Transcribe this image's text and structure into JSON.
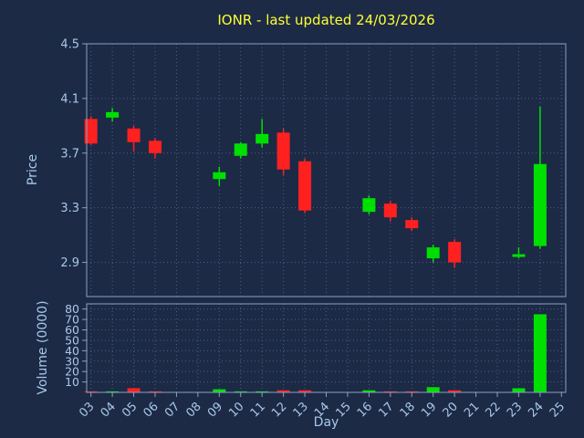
{
  "title": "IONR - last updated 24/03/2026",
  "colors": {
    "background": "#1c2a46",
    "up": "#00e000",
    "down": "#ff2020",
    "grid": "#55688e",
    "spine": "#8aa0c0",
    "tick_label": "#a8c8e8",
    "title": "#ffff33",
    "axis_label": "#a8c8e8"
  },
  "price_axis": {
    "label": "Price",
    "ticks": [
      2.9,
      3.3,
      3.7,
      4.1,
      4.5
    ],
    "range": [
      2.65,
      4.5
    ]
  },
  "volume_axis": {
    "label": "Volume (0000)",
    "ticks": [
      10,
      20,
      30,
      40,
      50,
      60,
      70,
      80
    ],
    "range": [
      0,
      85
    ]
  },
  "x_axis": {
    "label": "Day",
    "tick_labels": [
      "03",
      "04",
      "05",
      "06",
      "07",
      "08",
      "09",
      "10",
      "11",
      "12",
      "13",
      "14",
      "15",
      "16",
      "17",
      "18",
      "19",
      "20",
      "21",
      "22",
      "23",
      "24",
      "25"
    ],
    "first_day": 3,
    "range": [
      2.8,
      25.2
    ]
  },
  "chart_data": {
    "type": "candlestick+volume",
    "title": "IONR - last updated 24/03/2026",
    "xlabel": "Day",
    "ylabel": "Price",
    "volume_label": "Volume (0000)",
    "candles": [
      {
        "day": 3,
        "label": "03",
        "open": 3.95,
        "high": 3.97,
        "low": 3.76,
        "close": 3.77,
        "volume": 1
      },
      {
        "day": 4,
        "label": "04",
        "open": 3.96,
        "high": 4.03,
        "low": 3.93,
        "close": 4.0,
        "volume": 1
      },
      {
        "day": 5,
        "label": "05",
        "open": 3.88,
        "high": 3.9,
        "low": 3.71,
        "close": 3.78,
        "volume": 4
      },
      {
        "day": 6,
        "label": "06",
        "open": 3.79,
        "high": 3.81,
        "low": 3.66,
        "close": 3.7,
        "volume": 1
      },
      {
        "day": 9,
        "label": "09",
        "open": 3.51,
        "high": 3.6,
        "low": 3.46,
        "close": 3.56,
        "volume": 3
      },
      {
        "day": 10,
        "label": "10",
        "open": 3.68,
        "high": 3.78,
        "low": 3.66,
        "close": 3.77,
        "volume": 1
      },
      {
        "day": 11,
        "label": "11",
        "open": 3.77,
        "high": 3.95,
        "low": 3.74,
        "close": 3.84,
        "volume": 1
      },
      {
        "day": 12,
        "label": "12",
        "open": 3.85,
        "high": 3.88,
        "low": 3.54,
        "close": 3.58,
        "volume": 2
      },
      {
        "day": 13,
        "label": "13",
        "open": 3.64,
        "high": 3.66,
        "low": 3.26,
        "close": 3.28,
        "volume": 2
      },
      {
        "day": 16,
        "label": "16",
        "open": 3.27,
        "high": 3.39,
        "low": 3.25,
        "close": 3.37,
        "volume": 2
      },
      {
        "day": 17,
        "label": "17",
        "open": 3.33,
        "high": 3.35,
        "low": 3.2,
        "close": 3.23,
        "volume": 1
      },
      {
        "day": 18,
        "label": "18",
        "open": 3.21,
        "high": 3.23,
        "low": 3.13,
        "close": 3.15,
        "volume": 1
      },
      {
        "day": 19,
        "label": "19",
        "open": 2.93,
        "high": 3.03,
        "low": 2.9,
        "close": 3.01,
        "volume": 5
      },
      {
        "day": 20,
        "label": "20",
        "open": 3.05,
        "high": 3.07,
        "low": 2.86,
        "close": 2.9,
        "volume": 2
      },
      {
        "day": 23,
        "label": "23",
        "open": 2.94,
        "high": 3.01,
        "low": 2.93,
        "close": 2.96,
        "volume": 4
      },
      {
        "day": 24,
        "label": "24",
        "open": 3.02,
        "high": 4.04,
        "low": 3.0,
        "close": 3.62,
        "volume": 75
      }
    ]
  }
}
